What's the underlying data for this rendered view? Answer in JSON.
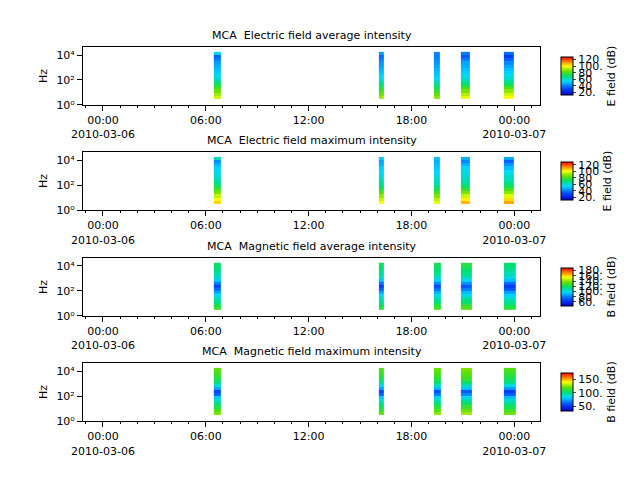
{
  "chart_data": [
    {
      "type": "heatmap",
      "title": "MCA  Electric field average intensity",
      "ylabel": "Hz",
      "log": "y",
      "grid": false,
      "colorbar": {
        "label": "E field (dB)",
        "range": [
          12,
          128
        ],
        "ticks": [
          {
            "value": 20,
            "label": "20."
          },
          40,
          60,
          80,
          {
            "value": 100,
            "label": "100."
          },
          120
        ]
      },
      "xlim": [
        "2010-03-05 22:50",
        "2010-03-07 01:30"
      ],
      "xticks": [
        {
          "value": "2010-03-06 00:00",
          "label": "00:00\n2010-03-06"
        },
        {
          "value": "2010-03-06 06:00",
          "label": "06:00"
        },
        {
          "value": "2010-03-06 12:00",
          "label": "12:00"
        },
        {
          "value": "2010-03-06 18:00",
          "label": "18:00"
        },
        {
          "value": "2010-03-07 00:00",
          "label": "00:00\n2010-03-07"
        }
      ],
      "ylim": [
        1,
        43652
      ],
      "yticks": [
        {
          "value": 1,
          "label": "10⁰"
        },
        {
          "value": 100,
          "label": "10²"
        },
        {
          "value": 10000,
          "label": "10⁴"
        }
      ],
      "x": [
        "2010-03-06 06:28",
        "2010-03-06 06:52",
        "2010-03-06 16:04",
        "2010-03-06 16:22",
        "2010-03-06 19:18",
        "2010-03-06 19:38",
        "2010-03-06 20:54",
        "2010-03-06 21:24",
        "2010-03-06 23:24",
        "2010-03-07 00:00"
      ],
      "y": [
        3.16,
        5.62,
        10,
        17.8,
        31.6,
        56.2,
        100,
        178,
        316,
        562,
        1000,
        1778,
        3162,
        5623,
        10000,
        17783
      ],
      "z": [
        [
          95,
          null,
          90,
          null,
          88,
          null,
          98,
          null,
          100
        ],
        [
          90,
          null,
          85,
          null,
          84,
          null,
          92,
          null,
          95
        ],
        [
          85,
          null,
          80,
          null,
          78,
          null,
          86,
          null,
          88
        ],
        [
          78,
          null,
          74,
          null,
          72,
          null,
          78,
          null,
          80
        ],
        [
          72,
          null,
          68,
          null,
          66,
          null,
          70,
          null,
          72
        ],
        [
          66,
          null,
          62,
          null,
          60,
          null,
          64,
          null,
          65
        ],
        [
          60,
          null,
          57,
          null,
          56,
          null,
          58,
          null,
          60
        ],
        [
          56,
          null,
          53,
          null,
          52,
          null,
          54,
          null,
          55
        ],
        [
          52,
          null,
          50,
          null,
          50,
          null,
          52,
          null,
          52
        ],
        [
          50,
          null,
          48,
          null,
          48,
          null,
          50,
          null,
          50
        ],
        [
          48,
          null,
          46,
          null,
          46,
          null,
          48,
          null,
          46
        ],
        [
          45,
          null,
          44,
          null,
          44,
          null,
          46,
          null,
          42
        ],
        [
          40,
          null,
          40,
          null,
          42,
          null,
          40,
          null,
          35
        ],
        [
          35,
          null,
          38,
          null,
          40,
          null,
          34,
          null,
          28
        ],
        [
          55,
          null,
          45,
          null,
          42,
          null,
          40,
          null,
          38
        ]
      ]
    },
    {
      "type": "heatmap",
      "title": "MCA  Electric field maximum intensity",
      "ylabel": "Hz",
      "log": "y",
      "grid": false,
      "colorbar": {
        "label": "E field (dB)",
        "range": [
          12,
          128
        ],
        "ticks": [
          {
            "value": 20,
            "label": "20."
          },
          40,
          60,
          80,
          100,
          120
        ]
      },
      "xlim": [
        "2010-03-05 22:50",
        "2010-03-07 01:30"
      ],
      "xticks": [
        {
          "value": "2010-03-06 00:00",
          "label": "00:00\n2010-03-06"
        },
        {
          "value": "2010-03-06 06:00",
          "label": "06:00"
        },
        {
          "value": "2010-03-06 12:00",
          "label": "12:00"
        },
        {
          "value": "2010-03-06 18:00",
          "label": "18:00"
        },
        {
          "value": "2010-03-07 00:00",
          "label": "00:00\n2010-03-07"
        }
      ],
      "ylim": [
        1,
        43652
      ],
      "yticks": [
        {
          "value": 1,
          "label": "10⁰"
        },
        {
          "value": 100,
          "label": "10²"
        },
        {
          "value": 10000,
          "label": "10⁴"
        }
      ],
      "x": [
        "2010-03-06 06:28",
        "2010-03-06 06:52",
        "2010-03-06 16:04",
        "2010-03-06 16:22",
        "2010-03-06 19:18",
        "2010-03-06 19:38",
        "2010-03-06 20:54",
        "2010-03-06 21:24",
        "2010-03-06 23:24",
        "2010-03-07 00:00"
      ],
      "y": [
        3.16,
        5.62,
        10,
        17.8,
        31.6,
        56.2,
        100,
        178,
        316,
        562,
        1000,
        1778,
        3162,
        5623,
        10000,
        17783
      ],
      "z": [
        [
          105,
          null,
          100,
          null,
          98,
          null,
          108,
          null,
          110
        ],
        [
          100,
          null,
          94,
          null,
          93,
          null,
          101,
          null,
          104
        ],
        [
          94,
          null,
          89,
          null,
          87,
          null,
          95,
          null,
          97
        ],
        [
          86,
          null,
          82,
          null,
          80,
          null,
          86,
          null,
          88
        ],
        [
          80,
          null,
          76,
          null,
          74,
          null,
          78,
          null,
          80
        ],
        [
          74,
          null,
          70,
          null,
          68,
          null,
          72,
          null,
          73
        ],
        [
          68,
          null,
          65,
          null,
          64,
          null,
          66,
          null,
          68
        ],
        [
          64,
          null,
          61,
          null,
          60,
          null,
          62,
          null,
          63
        ],
        [
          60,
          null,
          58,
          null,
          58,
          null,
          60,
          null,
          60
        ],
        [
          58,
          null,
          56,
          null,
          56,
          null,
          58,
          null,
          58
        ],
        [
          56,
          null,
          54,
          null,
          54,
          null,
          56,
          null,
          54
        ],
        [
          53,
          null,
          52,
          null,
          52,
          null,
          54,
          null,
          50
        ],
        [
          48,
          null,
          48,
          null,
          50,
          null,
          48,
          null,
          43
        ],
        [
          43,
          null,
          46,
          null,
          48,
          null,
          42,
          null,
          36
        ],
        [
          62,
          null,
          52,
          null,
          50,
          null,
          48,
          null,
          46
        ]
      ]
    },
    {
      "type": "heatmap",
      "title": "MCA  Magnetic field average intensity",
      "ylabel": "Hz",
      "log": "y",
      "grid": false,
      "colorbar": {
        "label": "B field (dB)",
        "range": [
          45,
          190
        ],
        "ticks": [
          {
            "value": 60,
            "label": "60."
          },
          80,
          {
            "value": 100,
            "label": "100."
          },
          {
            "value": 120,
            "label": "120."
          },
          {
            "value": 140,
            "label": "140."
          },
          {
            "value": 160,
            "label": "160."
          },
          {
            "value": 180,
            "label": "180."
          }
        ]
      },
      "xlim": [
        "2010-03-05 22:50",
        "2010-03-07 01:30"
      ],
      "xticks": [
        {
          "value": "2010-03-06 00:00",
          "label": "00:00\n2010-03-06"
        },
        {
          "value": "2010-03-06 06:00",
          "label": "06:00"
        },
        {
          "value": "2010-03-06 12:00",
          "label": "12:00"
        },
        {
          "value": "2010-03-06 18:00",
          "label": "18:00"
        },
        {
          "value": "2010-03-07 00:00",
          "label": "00:00\n2010-03-07"
        }
      ],
      "ylim": [
        1,
        43652
      ],
      "yticks": [
        {
          "value": 1,
          "label": "10⁰"
        },
        {
          "value": 100,
          "label": "10²"
        },
        {
          "value": 10000,
          "label": "10⁴"
        }
      ],
      "x": [
        "2010-03-06 06:28",
        "2010-03-06 06:52",
        "2010-03-06 16:04",
        "2010-03-06 16:22",
        "2010-03-06 19:18",
        "2010-03-06 19:42",
        "2010-03-06 20:54",
        "2010-03-06 21:32",
        "2010-03-06 23:24",
        "2010-03-07 00:06"
      ],
      "y": [
        3.16,
        5.62,
        10,
        17.8,
        31.6,
        56.2,
        100,
        178,
        316,
        562,
        1000,
        1778,
        3162,
        5623,
        10000,
        17783
      ],
      "z": [
        [
          128,
          null,
          125,
          null,
          130,
          null,
          132,
          null,
          126
        ],
        [
          122,
          null,
          120,
          null,
          124,
          null,
          126,
          null,
          120
        ],
        [
          114,
          null,
          112,
          null,
          116,
          null,
          118,
          null,
          112
        ],
        [
          106,
          null,
          105,
          null,
          108,
          null,
          110,
          null,
          104
        ],
        [
          98,
          null,
          98,
          null,
          100,
          null,
          102,
          null,
          96
        ],
        [
          88,
          null,
          88,
          null,
          90,
          null,
          92,
          null,
          86
        ],
        [
          76,
          null,
          75,
          null,
          78,
          null,
          80,
          null,
          72
        ],
        [
          68,
          null,
          68,
          null,
          70,
          null,
          72,
          null,
          65
        ],
        [
          80,
          null,
          78,
          null,
          82,
          null,
          84,
          null,
          76
        ],
        [
          95,
          null,
          94,
          null,
          96,
          null,
          98,
          null,
          92
        ],
        [
          105,
          null,
          104,
          null,
          106,
          null,
          108,
          null,
          102
        ],
        [
          110,
          null,
          110,
          null,
          112,
          null,
          114,
          null,
          108
        ],
        [
          115,
          null,
          114,
          null,
          116,
          null,
          118,
          null,
          112
        ],
        [
          118,
          null,
          118,
          null,
          120,
          null,
          122,
          null,
          116
        ],
        [
          120,
          null,
          120,
          null,
          122,
          null,
          124,
          null,
          118
        ]
      ]
    },
    {
      "type": "heatmap",
      "title": "MCA  Magnetic field maximum intensity",
      "ylabel": "Hz",
      "log": "y",
      "grid": false,
      "colorbar": {
        "label": "B field (dB)",
        "range": [
          33,
          172
        ],
        "ticks": [
          {
            "value": 50,
            "label": "50."
          },
          {
            "value": 100,
            "label": "100."
          },
          {
            "value": 150,
            "label": "150."
          }
        ]
      },
      "xlim": [
        "2010-03-05 22:50",
        "2010-03-07 01:30"
      ],
      "xticks": [
        {
          "value": "2010-03-06 00:00",
          "label": "00:00\n2010-03-06"
        },
        {
          "value": "2010-03-06 06:00",
          "label": "06:00"
        },
        {
          "value": "2010-03-06 12:00",
          "label": "12:00"
        },
        {
          "value": "2010-03-06 18:00",
          "label": "18:00"
        },
        {
          "value": "2010-03-07 00:00",
          "label": "00:00\n2010-03-07"
        }
      ],
      "ylim": [
        1,
        43652
      ],
      "yticks": [
        {
          "value": 1,
          "label": "10⁰"
        },
        {
          "value": 100,
          "label": "10²"
        },
        {
          "value": 10000,
          "label": "10⁴"
        }
      ],
      "x": [
        "2010-03-06 06:28",
        "2010-03-06 06:52",
        "2010-03-06 16:04",
        "2010-03-06 16:22",
        "2010-03-06 19:18",
        "2010-03-06 19:42",
        "2010-03-06 20:54",
        "2010-03-06 21:32",
        "2010-03-06 23:24",
        "2010-03-07 00:06"
      ],
      "y": [
        3.16,
        5.62,
        10,
        17.8,
        31.6,
        56.2,
        100,
        178,
        316,
        562,
        1000,
        1778,
        3162,
        5623,
        10000,
        17783
      ],
      "z": [
        [
          122,
          null,
          118,
          null,
          124,
          null,
          126,
          null,
          120
        ],
        [
          116,
          null,
          112,
          null,
          118,
          null,
          120,
          null,
          114
        ],
        [
          108,
          null,
          105,
          null,
          110,
          null,
          112,
          null,
          106
        ],
        [
          100,
          null,
          98,
          null,
          102,
          null,
          104,
          null,
          98
        ],
        [
          92,
          null,
          90,
          null,
          94,
          null,
          96,
          null,
          90
        ],
        [
          80,
          null,
          80,
          null,
          82,
          null,
          84,
          null,
          78
        ],
        [
          62,
          null,
          62,
          null,
          66,
          null,
          68,
          null,
          60
        ],
        [
          55,
          null,
          56,
          null,
          58,
          null,
          60,
          null,
          52
        ],
        [
          75,
          null,
          74,
          null,
          78,
          null,
          80,
          null,
          72
        ],
        [
          90,
          null,
          88,
          null,
          92,
          null,
          94,
          null,
          88
        ],
        [
          100,
          null,
          98,
          null,
          102,
          null,
          104,
          null,
          98
        ],
        [
          108,
          null,
          106,
          null,
          110,
          null,
          112,
          null,
          106
        ],
        [
          112,
          null,
          110,
          null,
          114,
          null,
          116,
          null,
          110
        ],
        [
          115,
          null,
          114,
          null,
          117,
          null,
          119,
          null,
          113
        ],
        [
          118,
          null,
          116,
          null,
          120,
          null,
          122,
          null,
          116
        ]
      ]
    }
  ]
}
